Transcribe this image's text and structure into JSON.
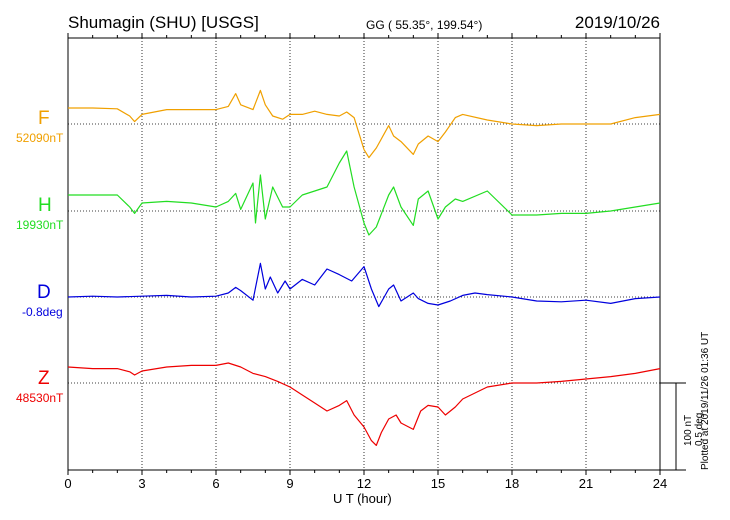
{
  "header": {
    "station": "Shumagin (SHU)  [USGS]",
    "coords": "GG ( 55.35°, 199.54°)",
    "date": "2019/10/26"
  },
  "plotted_note": "Plotted at 2019/11/26 01:36 UT",
  "scale": {
    "nt": "100 nT",
    "deg": "0.5 deg"
  },
  "chart_data": {
    "type": "line",
    "xlabel": "U T (hour)",
    "xlim": [
      0,
      24
    ],
    "x_ticks": [
      "0",
      "3",
      "6",
      "9",
      "12",
      "15",
      "18",
      "21",
      "24"
    ],
    "grid": "dotted vertical every 3 h, dotted baseline per component",
    "series": [
      {
        "name": "F",
        "color": "#f0a000",
        "baseline_label": "52090nT",
        "x": [
          0,
          1,
          2,
          2.5,
          2.7,
          3,
          4,
          5,
          6,
          6.5,
          6.8,
          7,
          7.5,
          7.8,
          8,
          8.3,
          8.7,
          9,
          9.5,
          10,
          10.5,
          11,
          11.3,
          11.6,
          12,
          12.2,
          12.5,
          13,
          13.2,
          13.5,
          14,
          14.2,
          14.6,
          15,
          15.3,
          15.7,
          16,
          17,
          18,
          19,
          20,
          21,
          22,
          23,
          24
        ],
        "y": [
          20,
          20,
          19,
          10,
          3,
          12,
          18,
          18,
          18,
          22,
          38,
          24,
          18,
          42,
          24,
          10,
          6,
          12,
          12,
          16,
          12,
          10,
          15,
          8,
          -32,
          -42,
          -30,
          -2,
          -15,
          -22,
          -38,
          -25,
          -15,
          -22,
          -10,
          8,
          12,
          5,
          0,
          -2,
          0,
          0,
          0,
          8,
          12
        ]
      },
      {
        "name": "H",
        "color": "#22dd22",
        "baseline_label": "19930nT",
        "x": [
          0,
          1,
          2,
          2.5,
          2.7,
          3,
          4,
          5,
          6,
          6.5,
          6.8,
          7,
          7.5,
          7.6,
          7.8,
          8,
          8.3,
          8.7,
          9,
          9.5,
          10,
          10.5,
          11,
          11.3,
          11.6,
          12,
          12.2,
          12.5,
          13,
          13.2,
          13.5,
          14,
          14.2,
          14.6,
          15,
          15.3,
          15.7,
          16,
          17,
          18,
          19,
          20,
          21,
          22,
          23,
          24
        ],
        "y": [
          20,
          20,
          20,
          5,
          -3,
          10,
          12,
          10,
          5,
          12,
          22,
          2,
          35,
          -15,
          45,
          -10,
          30,
          5,
          5,
          20,
          25,
          30,
          60,
          75,
          30,
          -15,
          -30,
          -20,
          20,
          30,
          5,
          -18,
          15,
          25,
          -10,
          5,
          15,
          12,
          25,
          -5,
          -5,
          -3,
          -3,
          0,
          5,
          10
        ]
      },
      {
        "name": "D",
        "color": "#0000dd",
        "baseline_label": "-0.8deg",
        "x": [
          0,
          1,
          2,
          3,
          4,
          5,
          6,
          6.5,
          6.8,
          7,
          7.5,
          7.8,
          8,
          8.2,
          8.5,
          8.8,
          9,
          9.5,
          10,
          10.5,
          11,
          11.5,
          12,
          12.3,
          12.6,
          13,
          13.2,
          13.5,
          14,
          14.2,
          14.6,
          15,
          15.5,
          16,
          16.5,
          17,
          18,
          19,
          20,
          21,
          22,
          23,
          24
        ],
        "y": [
          0,
          1,
          0,
          1,
          2,
          0,
          1,
          5,
          12,
          8,
          -4,
          42,
          10,
          25,
          5,
          20,
          10,
          22,
          15,
          35,
          28,
          20,
          38,
          10,
          -12,
          10,
          15,
          -5,
          5,
          -2,
          -8,
          -10,
          -5,
          2,
          5,
          3,
          0,
          -5,
          -6,
          -4,
          -8,
          -2,
          0
        ]
      },
      {
        "name": "Z",
        "color": "#ee0000",
        "baseline_label": "48530nT",
        "x": [
          0,
          1,
          2,
          2.5,
          2.7,
          3,
          4,
          5,
          6,
          6.5,
          7,
          7.5,
          8,
          8.5,
          9,
          9.5,
          10,
          10.5,
          11,
          11.3,
          11.6,
          12,
          12.3,
          12.5,
          12.7,
          13,
          13.3,
          13.5,
          14,
          14.3,
          14.6,
          15,
          15.3,
          15.7,
          16,
          17,
          18,
          19,
          20,
          21,
          22,
          23,
          24
        ],
        "y": [
          20,
          18,
          18,
          14,
          10,
          15,
          20,
          22,
          22,
          25,
          20,
          12,
          8,
          2,
          -5,
          -15,
          -25,
          -35,
          -28,
          -22,
          -40,
          -55,
          -72,
          -78,
          -62,
          -45,
          -40,
          -50,
          -58,
          -35,
          -28,
          -30,
          -40,
          -30,
          -20,
          -5,
          0,
          0,
          2,
          5,
          8,
          12,
          18
        ]
      }
    ]
  }
}
